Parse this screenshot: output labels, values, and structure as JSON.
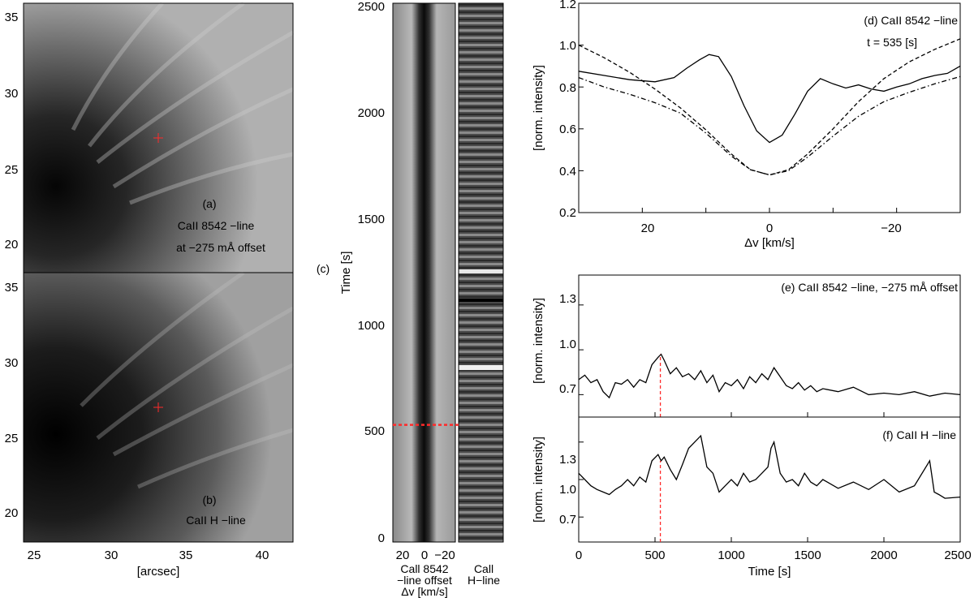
{
  "panel_a": {
    "tag": "(a)",
    "line1": "CaII 8542 −line",
    "line2": "at −275 mÅ offset"
  },
  "panel_b": {
    "tag": "(b)",
    "line1": "CaII H −line"
  },
  "image_axes": {
    "y_ticks": [
      "20",
      "25",
      "30",
      "35"
    ],
    "x_ticks": [
      "25",
      "30",
      "35",
      "40"
    ],
    "xlabel": "[arcsec]"
  },
  "panel_c": {
    "tag": "(c)",
    "ylabel": "Time [s]",
    "y_ticks": [
      "0",
      "500",
      "1000",
      "1500",
      "2000",
      "2500"
    ],
    "x_ticks": [
      "20",
      "0",
      "−20"
    ],
    "bottom_label_1": [
      "Call 8542",
      "−line offset",
      "Δv [km/s]"
    ],
    "bottom_label_2": [
      "Call",
      "H−line"
    ],
    "marker_time": 535
  },
  "colors": {
    "marker": "#ff2a2a",
    "line": "#000000"
  },
  "chart_data": [
    {
      "id": "d",
      "type": "line",
      "title": "(d) CaII 8542 −line",
      "annotation": "t = 535 [s]",
      "xlabel": "Δv [km/s]",
      "ylabel": "[norm. intensity]",
      "xlim": [
        30,
        -30
      ],
      "ylim": [
        0.2,
        1.2
      ],
      "x_ticks": [
        "20",
        "0",
        "−20"
      ],
      "y_ticks": [
        "0.2",
        "0.4",
        "0.6",
        "0.8",
        "1.0",
        "1.2"
      ],
      "series": [
        {
          "style": "solid",
          "x": [
            30,
            26,
            22,
            18,
            15,
            13,
            11,
            9.5,
            8,
            6,
            4,
            2,
            0,
            -2,
            -4,
            -6,
            -8,
            -10,
            -12,
            -14,
            -16,
            -18,
            -20,
            -22,
            -24,
            -26,
            -28,
            -30
          ],
          "y": [
            0.875,
            0.855,
            0.835,
            0.825,
            0.845,
            0.89,
            0.93,
            0.955,
            0.945,
            0.85,
            0.71,
            0.59,
            0.535,
            0.57,
            0.67,
            0.78,
            0.84,
            0.815,
            0.795,
            0.81,
            0.79,
            0.78,
            0.8,
            0.815,
            0.84,
            0.855,
            0.865,
            0.9
          ]
        },
        {
          "style": "dashed",
          "x": [
            30,
            26,
            22,
            18,
            14,
            10,
            6,
            3,
            0,
            -3,
            -6,
            -10,
            -14,
            -18,
            -22,
            -26,
            -30
          ],
          "y": [
            1.0,
            0.94,
            0.87,
            0.79,
            0.7,
            0.595,
            0.48,
            0.405,
            0.38,
            0.405,
            0.48,
            0.6,
            0.73,
            0.84,
            0.92,
            0.98,
            1.03
          ]
        },
        {
          "style": "dashdot",
          "x": [
            30,
            26,
            22,
            18,
            14,
            10,
            6,
            3,
            0,
            -3,
            -6,
            -10,
            -14,
            -18,
            -22,
            -26,
            -30
          ],
          "y": [
            0.845,
            0.8,
            0.765,
            0.725,
            0.675,
            0.58,
            0.47,
            0.405,
            0.38,
            0.4,
            0.465,
            0.565,
            0.66,
            0.73,
            0.775,
            0.815,
            0.85
          ]
        }
      ]
    },
    {
      "id": "e",
      "type": "line",
      "title": "(e) CaII 8542 −line, −275 mÅ offset",
      "xlabel": "",
      "ylabel": "[norm. intensity]",
      "xlim": [
        0,
        2500
      ],
      "ylim": [
        0.55,
        1.5
      ],
      "y_ticks": [
        "0.7",
        "1.0",
        "1.3"
      ],
      "marker_x": 535,
      "series": [
        {
          "name": "",
          "x": [
            0,
            40,
            80,
            120,
            160,
            200,
            240,
            280,
            320,
            360,
            400,
            440,
            480,
            520,
            540,
            560,
            600,
            640,
            680,
            720,
            760,
            800,
            840,
            880,
            920,
            960,
            1000,
            1040,
            1080,
            1120,
            1160,
            1200,
            1240,
            1280,
            1320,
            1360,
            1400,
            1440,
            1480,
            1520,
            1560,
            1600,
            1700,
            1800,
            1900,
            2000,
            2100,
            2200,
            2300,
            2400,
            2500
          ],
          "y": [
            0.8,
            0.83,
            0.78,
            0.8,
            0.72,
            0.68,
            0.78,
            0.77,
            0.8,
            0.75,
            0.8,
            0.78,
            0.9,
            0.95,
            0.97,
            0.93,
            0.84,
            0.88,
            0.82,
            0.84,
            0.8,
            0.86,
            0.78,
            0.83,
            0.72,
            0.78,
            0.76,
            0.8,
            0.74,
            0.82,
            0.78,
            0.84,
            0.8,
            0.88,
            0.82,
            0.76,
            0.74,
            0.78,
            0.73,
            0.76,
            0.72,
            0.74,
            0.72,
            0.75,
            0.7,
            0.71,
            0.7,
            0.72,
            0.69,
            0.71,
            0.7
          ]
        }
      ]
    },
    {
      "id": "f",
      "type": "line",
      "title": "(f) CaII H −line",
      "xlabel": "Time [s]",
      "ylabel": "[norm. intensity]",
      "xlim": [
        0,
        2500
      ],
      "ylim": [
        0.5,
        1.5
      ],
      "y_ticks": [
        "0.7",
        "1.0",
        "1.3"
      ],
      "x_ticks": [
        "0",
        "500",
        "1000",
        "1500",
        "2000",
        "2500"
      ],
      "marker_x": 535,
      "series": [
        {
          "name": "",
          "x": [
            0,
            40,
            80,
            120,
            160,
            200,
            240,
            280,
            320,
            360,
            400,
            440,
            480,
            520,
            540,
            560,
            600,
            640,
            680,
            720,
            760,
            800,
            840,
            880,
            920,
            960,
            1000,
            1040,
            1080,
            1120,
            1160,
            1200,
            1240,
            1260,
            1280,
            1320,
            1360,
            1400,
            1440,
            1480,
            1520,
            1560,
            1600,
            1700,
            1800,
            1900,
            2000,
            2100,
            2200,
            2300,
            2330,
            2360,
            2400,
            2500
          ],
          "y": [
            1.05,
            1.0,
            0.95,
            0.92,
            0.9,
            0.88,
            0.92,
            0.95,
            1.0,
            0.95,
            1.02,
            0.98,
            1.15,
            1.2,
            1.15,
            1.18,
            1.08,
            1.0,
            1.12,
            1.25,
            1.3,
            1.35,
            1.1,
            1.05,
            0.9,
            0.95,
            1.0,
            0.95,
            1.05,
            0.98,
            1.0,
            1.05,
            1.1,
            1.25,
            1.3,
            1.05,
            0.98,
            1.0,
            0.95,
            1.05,
            0.98,
            0.95,
            1.0,
            0.93,
            0.98,
            0.92,
            1.0,
            0.9,
            0.95,
            1.15,
            0.9,
            0.88,
            0.85,
            0.86
          ]
        }
      ]
    }
  ]
}
